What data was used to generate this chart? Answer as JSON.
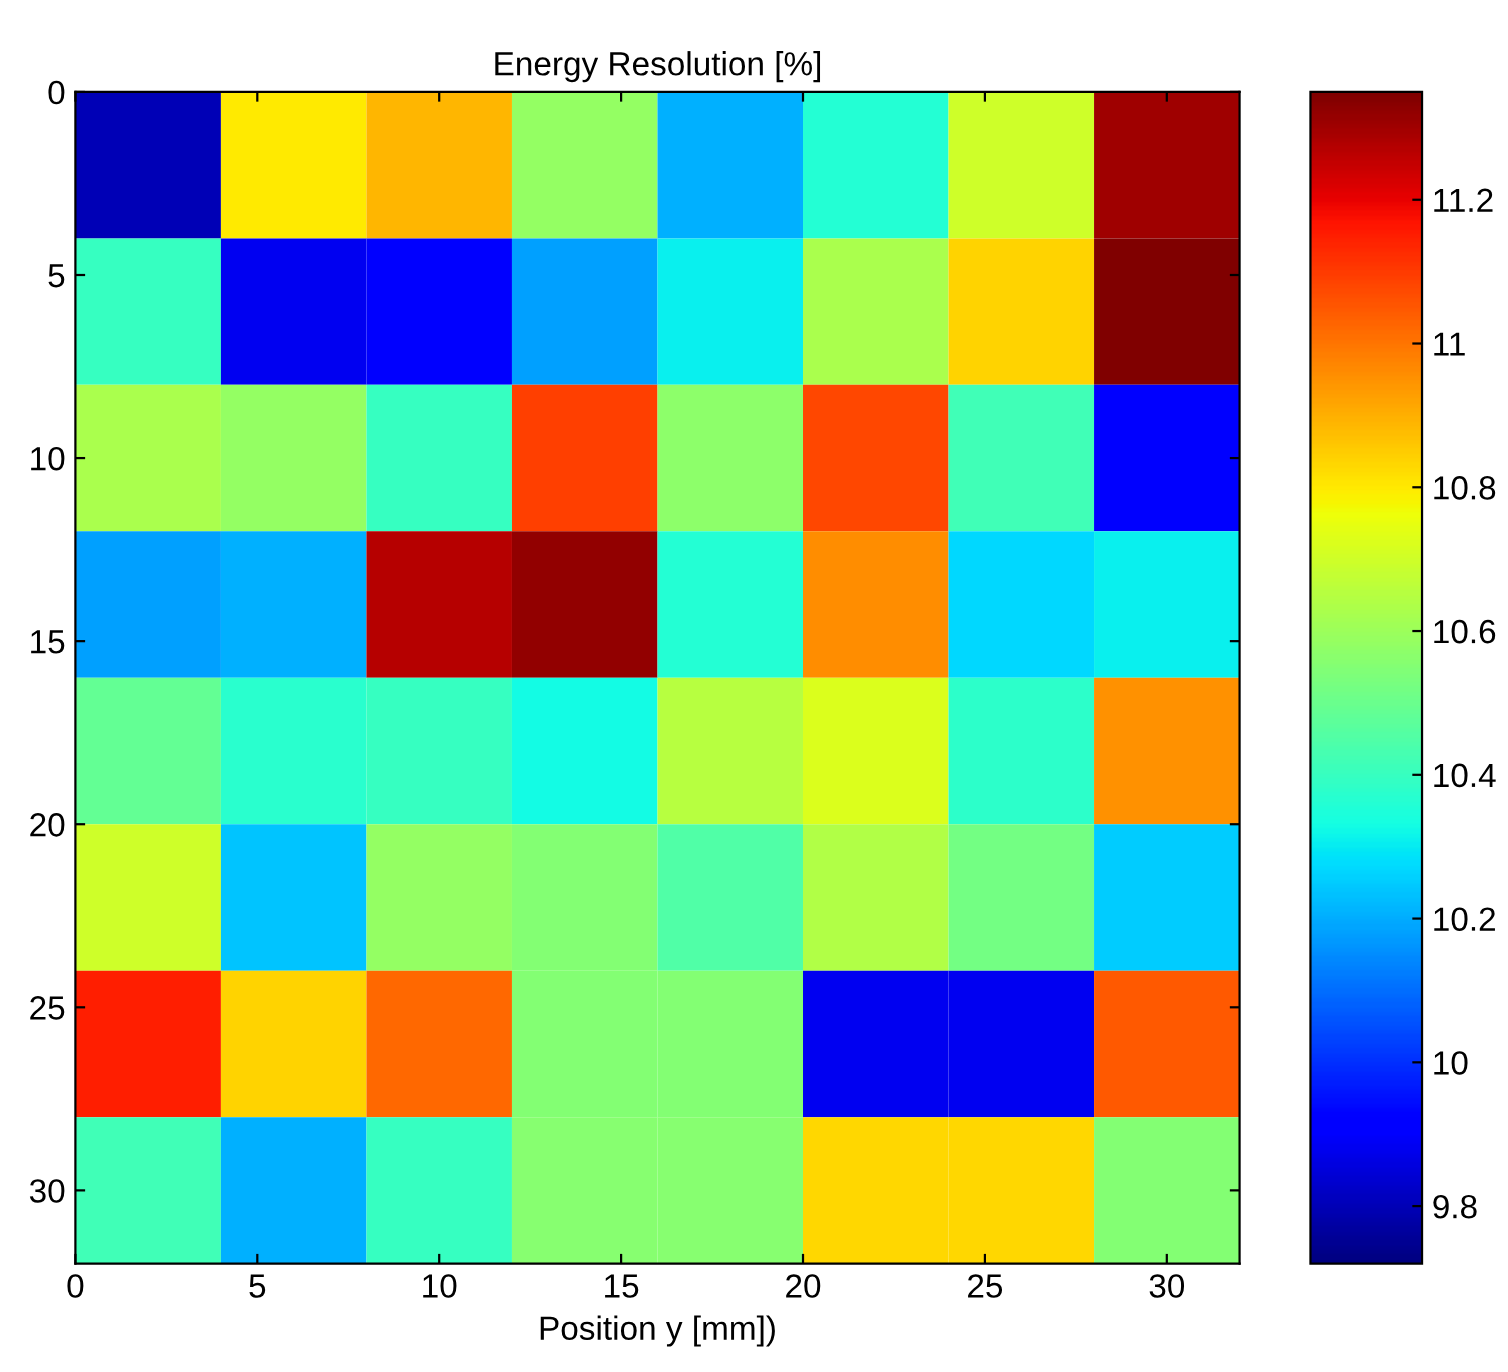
{
  "chart_data": {
    "type": "heatmap",
    "title": "Energy Resolution [%]",
    "xlabel": "Position y [mm])",
    "xlim": [
      0,
      32
    ],
    "ylim": [
      32,
      0
    ],
    "xticks": [
      0,
      5,
      10,
      15,
      20,
      25,
      30
    ],
    "yticks": [
      0,
      5,
      10,
      15,
      20,
      25,
      30
    ],
    "clim": [
      9.72,
      11.35
    ],
    "cticks": [
      9.8,
      10,
      10.2,
      10.4,
      10.6,
      10.8,
      11,
      11.2
    ],
    "cells": [
      [
        9.8,
        10.8,
        10.89,
        10.58,
        10.21,
        10.36,
        10.7,
        11.3
      ],
      [
        10.4,
        9.88,
        9.93,
        10.18,
        10.31,
        10.63,
        10.84,
        11.35
      ],
      [
        10.63,
        10.58,
        10.4,
        11.09,
        10.57,
        11.08,
        10.42,
        9.93
      ],
      [
        10.18,
        10.21,
        11.27,
        11.32,
        10.36,
        10.96,
        10.27,
        10.31
      ],
      [
        10.49,
        10.37,
        10.4,
        10.33,
        10.65,
        10.72,
        10.38,
        10.95
      ],
      [
        10.7,
        10.24,
        10.58,
        10.55,
        10.45,
        10.64,
        10.52,
        10.25
      ],
      [
        11.15,
        10.84,
        11.02,
        10.55,
        10.55,
        9.88,
        9.88,
        11.05
      ],
      [
        10.42,
        10.21,
        10.4,
        10.56,
        10.56,
        10.83,
        10.83,
        10.55
      ]
    ]
  }
}
